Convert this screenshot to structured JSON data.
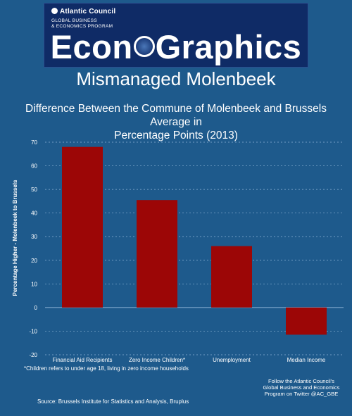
{
  "header": {
    "org_name": "Atlantic Council",
    "program_line1": "GLOBAL BUSINESS",
    "program_line2": "& ECONOMICS PROGRAM",
    "brand_left": "Econ",
    "brand_right": "Graphics",
    "headline": "Mismanaged Molenbeek"
  },
  "chart_data": {
    "type": "bar",
    "title": "Difference Between the Commune of Molenbeek and Brussels Average in Percentage Points (2013)",
    "title_line1": "Difference Between the Commune of Molenbeek and Brussels Average in",
    "title_line2": "Percentage Points (2013)",
    "categories": [
      "Financial Aid Recipients",
      "Zero Income Children*",
      "Unemployment",
      "Median Income"
    ],
    "values": [
      68,
      45.5,
      26,
      -11.5
    ],
    "xlabel": "",
    "ylabel": "Percentage Higher - Molenbeek to Brussels",
    "ylim": [
      -20,
      70
    ],
    "yticks": [
      70,
      60,
      50,
      40,
      30,
      20,
      10,
      0,
      -10,
      -20
    ],
    "grid": true,
    "bar_color": "#9c0606"
  },
  "notes": {
    "footnote": "*Children refers to under age 18, living in zero income households",
    "follow_line1": "Follow the Atlantic Council's",
    "follow_line2": "Global Business and Economics",
    "follow_line3": "Program on Twitter @AC_GBE",
    "source": "Source: Brussels Institute for Statistics and Analysis, Bruplus"
  },
  "colors": {
    "background": "#1e5a8c",
    "banner": "#0f2b66",
    "text": "#ffffff"
  }
}
